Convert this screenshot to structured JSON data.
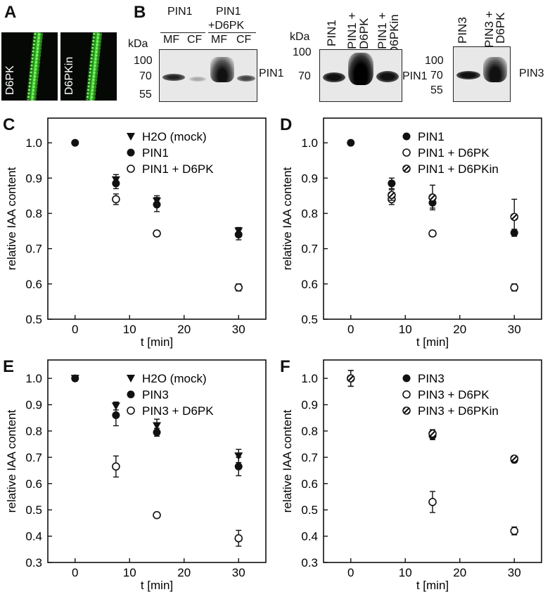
{
  "panel_labels": {
    "a": "A",
    "b": "B",
    "c": "C",
    "d": "D",
    "e": "E",
    "f": "F"
  },
  "panel_a": {
    "left_label": "D6PK",
    "right_label": "D6PKin"
  },
  "panel_b": {
    "kda_label": "kDa",
    "blot1": {
      "header1": "PIN1",
      "header2a": "PIN1",
      "header2b": "+D6PK",
      "lanes": [
        "MF",
        "CF",
        "MF",
        "CF"
      ],
      "markers": [
        "100",
        "70",
        "55"
      ],
      "protein": "PIN1"
    },
    "blot2": {
      "lanes": [
        "PIN1",
        "PIN1 +",
        "D6PK",
        "PIN1 +",
        "D6PKin"
      ],
      "markers": [
        "100",
        "70"
      ],
      "protein": "PIN1"
    },
    "blot3": {
      "lanes": [
        "PIN3",
        "PIN3 +",
        "D6PK"
      ],
      "markers": [
        "100",
        "70",
        "55"
      ],
      "protein": "PIN3"
    }
  },
  "chart_data": [
    {
      "panel": "C",
      "type": "scatter",
      "xlabel": "t [min]",
      "ylabel": "relative IAA content",
      "xlim": [
        -5,
        35
      ],
      "ylim": [
        0.5,
        1.07
      ],
      "xticks": [
        0,
        10,
        20,
        30
      ],
      "yticks": [
        0.5,
        0.6,
        0.7,
        0.8,
        0.9,
        1.0
      ],
      "ytick_labels": [
        "0.5",
        "0.6",
        "0.7",
        "0.8",
        "0.9",
        "1.0"
      ],
      "legend": "top-right",
      "series": [
        {
          "name": "H2O (mock)",
          "marker": "triangle",
          "x": [
            7.5,
            15,
            30
          ],
          "y": [
            0.895,
            0.835,
            0.75
          ],
          "err": [
            0.015,
            0.015,
            0.01
          ]
        },
        {
          "name": "PIN1",
          "marker": "filled",
          "x": [
            0,
            7.5,
            15,
            30
          ],
          "y": [
            1.0,
            0.885,
            0.825,
            0.74
          ],
          "err": [
            0,
            0.015,
            0.02,
            0.015
          ]
        },
        {
          "name": "PIN1 + D6PK",
          "marker": "open",
          "x": [
            7.5,
            15,
            30
          ],
          "y": [
            0.84,
            0.743,
            0.59
          ],
          "err": [
            0.015,
            0.008,
            0.01
          ]
        }
      ]
    },
    {
      "panel": "D",
      "type": "scatter",
      "xlabel": "t [min]",
      "ylabel": "relative IAA content",
      "xlim": [
        -5,
        35
      ],
      "ylim": [
        0.5,
        1.07
      ],
      "xticks": [
        0,
        10,
        20,
        30
      ],
      "yticks": [
        0.5,
        0.6,
        0.7,
        0.8,
        0.9,
        1.0
      ],
      "ytick_labels": [
        "0.5",
        "0.6",
        "0.7",
        "0.8",
        "0.9",
        "1.0"
      ],
      "legend": "top-right",
      "series": [
        {
          "name": "PIN1",
          "marker": "filled",
          "x": [
            0,
            7.5,
            15,
            30
          ],
          "y": [
            1.0,
            0.885,
            0.83,
            0.745
          ],
          "err": [
            0,
            0.015,
            0.015,
            0.01
          ]
        },
        {
          "name": "PIN1 + D6PK",
          "marker": "open",
          "x": [
            7.5,
            15,
            30
          ],
          "y": [
            0.84,
            0.743,
            0.59
          ],
          "err": [
            0.015,
            0.008,
            0.01
          ]
        },
        {
          "name": "PIN1 + D6PKin",
          "marker": "half",
          "x": [
            7.5,
            15,
            30
          ],
          "y": [
            0.852,
            0.845,
            0.79
          ],
          "err": [
            0.015,
            0.035,
            0.05
          ]
        }
      ]
    },
    {
      "panel": "E",
      "type": "scatter",
      "xlabel": "t [min]",
      "ylabel": "relative IAA content",
      "xlim": [
        -5,
        35
      ],
      "ylim": [
        0.3,
        1.07
      ],
      "xticks": [
        0,
        10,
        20,
        30
      ],
      "yticks": [
        0.3,
        0.4,
        0.5,
        0.6,
        0.7,
        0.8,
        0.9,
        1.0
      ],
      "ytick_labels": [
        "0.3",
        "0.4",
        "0.5",
        "0.6",
        "0.7",
        "0.8",
        "0.9",
        "1.0"
      ],
      "legend": "top-right",
      "series": [
        {
          "name": "H2O (mock)",
          "marker": "triangle",
          "x": [
            0,
            7.5,
            15,
            30
          ],
          "y": [
            1.0,
            0.895,
            0.82,
            0.705
          ],
          "err": [
            0,
            0.015,
            0.025,
            0.025
          ]
        },
        {
          "name": "PIN3",
          "marker": "filled",
          "x": [
            0,
            7.5,
            15,
            30
          ],
          "y": [
            1.0,
            0.86,
            0.795,
            0.665
          ],
          "err": [
            0,
            0.04,
            0.015,
            0.035
          ]
        },
        {
          "name": "PIN3 + D6PK",
          "marker": "open",
          "x": [
            7.5,
            15,
            30
          ],
          "y": [
            0.665,
            0.48,
            0.392
          ],
          "err": [
            0.04,
            0.01,
            0.03
          ]
        }
      ]
    },
    {
      "panel": "F",
      "type": "scatter",
      "xlabel": "t [min]",
      "ylabel": "relative IAA content",
      "xlim": [
        -5,
        35
      ],
      "ylim": [
        0.3,
        1.07
      ],
      "xticks": [
        0,
        10,
        20,
        30
      ],
      "yticks": [
        0.3,
        0.4,
        0.5,
        0.6,
        0.7,
        0.8,
        0.9,
        1.0
      ],
      "ytick_labels": [
        "0.3",
        "0.4",
        "0.5",
        "0.6",
        "0.7",
        "0.8",
        "0.9",
        "1.0"
      ],
      "legend": "top-right",
      "series": [
        {
          "name": "PIN3",
          "marker": "filled",
          "x": [
            0,
            15,
            30
          ],
          "y": [
            1.0,
            0.782,
            0.69
          ],
          "err": [
            0.03,
            0.015,
            0.01
          ]
        },
        {
          "name": "PIN3 + D6PK",
          "marker": "open",
          "x": [
            15,
            30
          ],
          "y": [
            0.53,
            0.42
          ],
          "err": [
            0.04,
            0.015
          ]
        },
        {
          "name": "PIN3 + D6PKin",
          "marker": "half",
          "x": [
            0,
            15,
            30
          ],
          "y": [
            1.0,
            0.79,
            0.695
          ],
          "err": [
            0.03,
            0.015,
            0.01
          ]
        }
      ]
    }
  ]
}
